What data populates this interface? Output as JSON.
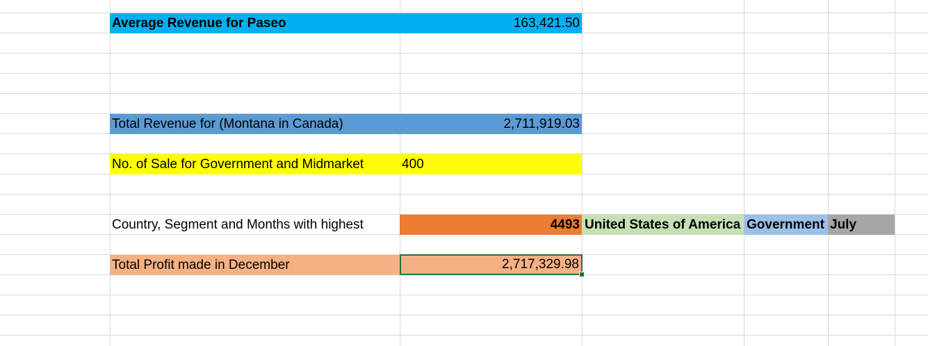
{
  "colors": {
    "grid": "#d9d9d9",
    "cyan": "#00b0f0",
    "blue": "#5b9bd5",
    "yellow": "#ffff00",
    "orange": "#ed7d31",
    "green": "#c6e0b4",
    "lightblue": "#9bc2e6",
    "gray": "#a6a6a6",
    "salmon": "#f4b183",
    "selection": "#217346"
  },
  "rows": {
    "avg_revenue": {
      "label": "Average Revenue for Paseo",
      "value": "163,421.50"
    },
    "total_revenue": {
      "label": "Total Revenue for (Montana in Canada)",
      "value": "2,711,919.03"
    },
    "num_sale": {
      "label": "No. of Sale for Government and Midmarket",
      "value": "400"
    },
    "highest": {
      "label": "Country, Segment and Months with highest",
      "value": "4493",
      "country": "United States of America",
      "segment": "Government",
      "month": "July"
    },
    "profit_december": {
      "label": "Total Profit made in December",
      "value": "2,717,329.98"
    }
  }
}
